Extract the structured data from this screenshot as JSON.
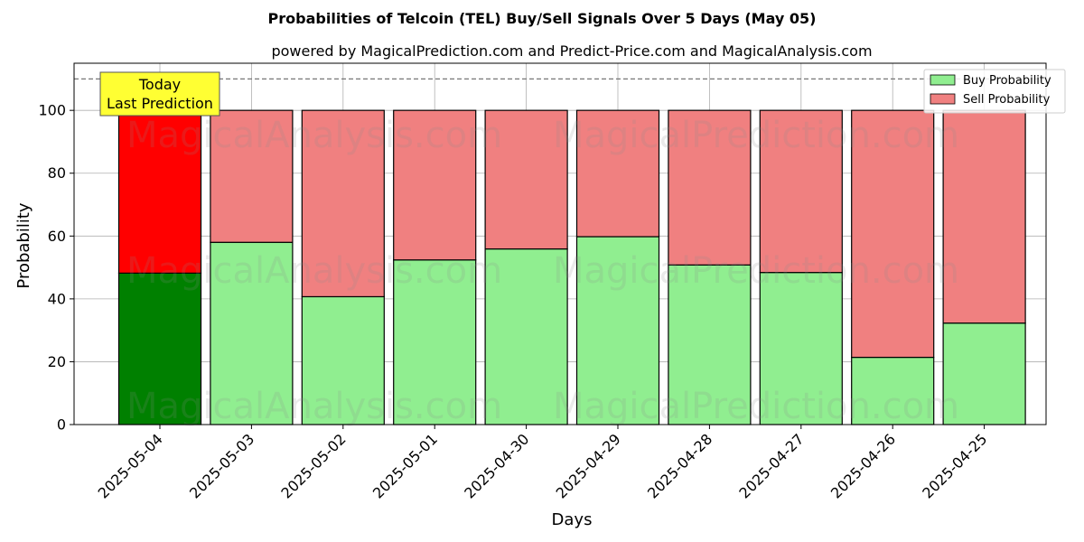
{
  "chart_data": {
    "type": "bar",
    "stacked": true,
    "title": "Probabilities of Telcoin (TEL) Buy/Sell Signals Over 5 Days (May 05)",
    "subtitle": "powered by MagicalPrediction.com and Predict-Price.com and MagicalAnalysis.com",
    "xlabel": "Days",
    "ylabel": "Probability",
    "ylim": [
      0,
      115
    ],
    "yticks": [
      0,
      20,
      40,
      60,
      80,
      100
    ],
    "reference_line": 110,
    "grid": true,
    "legend_position": "top-right",
    "categories": [
      "2025-05-04",
      "2025-05-03",
      "2025-05-02",
      "2025-05-01",
      "2025-04-30",
      "2025-04-29",
      "2025-04-28",
      "2025-04-27",
      "2025-04-26",
      "2025-04-25"
    ],
    "series": [
      {
        "name": "Buy Probability",
        "values": [
          48.2,
          58.0,
          40.7,
          52.4,
          55.9,
          59.8,
          50.8,
          48.4,
          21.4,
          32.3
        ]
      },
      {
        "name": "Sell Probability",
        "values": [
          51.8,
          42.0,
          59.3,
          47.6,
          44.1,
          40.2,
          49.2,
          51.6,
          78.6,
          67.7
        ]
      }
    ],
    "colors": {
      "buy": "#90ee90",
      "sell": "#f08080",
      "buy_highlight": "#008000",
      "sell_highlight": "#ff0000",
      "annotation_bg": "#ffff33"
    },
    "annotation": {
      "line1": "Today",
      "line2": "Last Prediction"
    },
    "watermarks": [
      "MagicalAnalysis.com",
      "MagicalPrediction.com"
    ]
  }
}
